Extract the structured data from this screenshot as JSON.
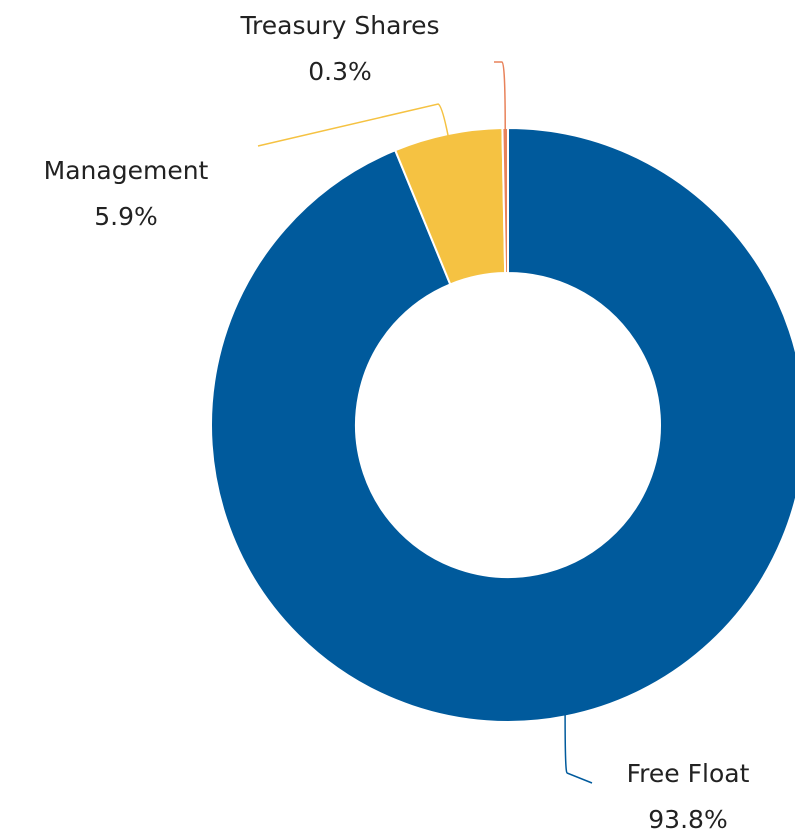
{
  "chart_data": {
    "type": "donut",
    "categories": [
      "Free Float",
      "Management",
      "Treasury Shares"
    ],
    "values": [
      93.8,
      5.9,
      0.3
    ],
    "value_labels": [
      "93.8%",
      "5.9%",
      "0.3%"
    ],
    "colors": [
      "#005a9c",
      "#f5c242",
      "#e8825a"
    ]
  }
}
